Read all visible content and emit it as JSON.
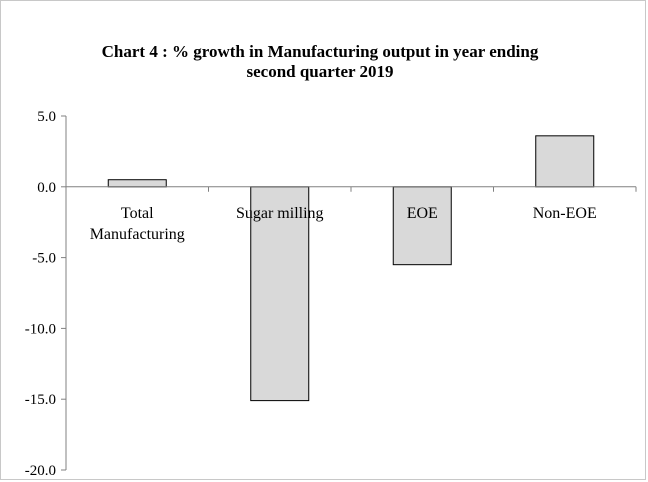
{
  "chart_data": {
    "type": "bar",
    "title": [
      "Chart 4 : % growth in Manufacturing output in year ending",
      "second quarter 2019"
    ],
    "categories": [
      [
        "Total",
        "Manufacturing"
      ],
      [
        "Sugar milling"
      ],
      [
        "EOE"
      ],
      [
        "Non-EOE"
      ]
    ],
    "values": [
      0.5,
      -15.1,
      -5.5,
      3.6
    ],
    "ylim": [
      -20,
      5
    ],
    "ytick_labels": [
      "5.0",
      "0.0",
      "-5.0",
      "-10.0",
      "-15.0",
      "-20.0"
    ],
    "yticks": [
      5,
      0,
      -5,
      -10,
      -15,
      -20
    ],
    "bar_color": "#d9d9d9",
    "bar_edge_color": "#000000",
    "grid": false,
    "legend": "none"
  }
}
